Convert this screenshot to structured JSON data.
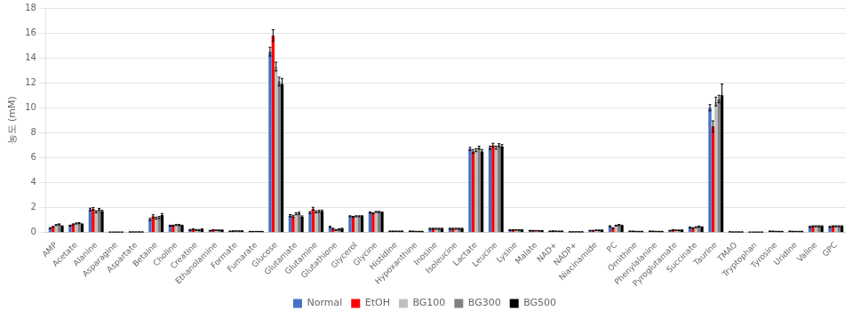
{
  "chart_data": {
    "type": "bar",
    "ylabel": "농도 (mM)",
    "categories": [
      "AMP",
      "Acetate",
      "Alanine",
      "Asparagine",
      "Aspartate",
      "Betaine",
      "Choline",
      "Creatine",
      "Ethanolamine",
      "Formate",
      "Fumarate",
      "Glucose",
      "Glutamate",
      "Glutamine",
      "Glutathione",
      "Glycerol",
      "Glycine",
      "Histidine",
      "Hypoxanthine",
      "Inosine",
      "Isoleucine",
      "Lactate",
      "Leucine",
      "Lysine",
      "Malate",
      "NAD+",
      "NADP+",
      "Niacinamide",
      "PC",
      "Ornithine",
      "Phenylalanine",
      "Pyroglutamate",
      "Succinate",
      "Taurine",
      "TMAO",
      "Tryptophan",
      "Tyrosine",
      "Uridine",
      "Valine",
      "GPC"
    ],
    "series": [
      {
        "name": "Normal",
        "color": "#4472C4",
        "values": [
          0.35,
          0.55,
          1.85,
          0.03,
          0.04,
          1.05,
          0.55,
          0.2,
          0.15,
          0.1,
          0.08,
          14.5,
          1.35,
          1.6,
          0.45,
          1.3,
          1.6,
          0.1,
          0.1,
          0.3,
          0.3,
          6.7,
          6.8,
          0.2,
          0.15,
          0.1,
          0.05,
          0.15,
          0.5,
          0.1,
          0.1,
          0.15,
          0.4,
          10.0,
          0.05,
          0.03,
          0.1,
          0.1,
          0.45,
          0.45
        ],
        "errors": [
          0.04,
          0.04,
          0.1,
          0.005,
          0.005,
          0.08,
          0.04,
          0.04,
          0.02,
          0.01,
          0.01,
          0.35,
          0.08,
          0.08,
          0.04,
          0.04,
          0.04,
          0.015,
          0.015,
          0.04,
          0.04,
          0.12,
          0.12,
          0.02,
          0.02,
          0.015,
          0.008,
          0.02,
          0.04,
          0.015,
          0.015,
          0.02,
          0.04,
          0.25,
          0.008,
          0.008,
          0.015,
          0.015,
          0.04,
          0.04
        ]
      },
      {
        "name": "EtOH",
        "color": "#FF0000",
        "values": [
          0.45,
          0.65,
          1.9,
          0.03,
          0.04,
          1.3,
          0.55,
          0.25,
          0.2,
          0.12,
          0.08,
          15.8,
          1.3,
          1.9,
          0.3,
          1.25,
          1.55,
          0.1,
          0.1,
          0.3,
          0.3,
          6.5,
          7.0,
          0.2,
          0.15,
          0.12,
          0.05,
          0.15,
          0.35,
          0.1,
          0.1,
          0.2,
          0.35,
          8.5,
          0.04,
          0.03,
          0.1,
          0.08,
          0.5,
          0.5
        ],
        "errors": [
          0.04,
          0.04,
          0.1,
          0.005,
          0.005,
          0.12,
          0.04,
          0.04,
          0.02,
          0.01,
          0.01,
          0.45,
          0.08,
          0.12,
          0.04,
          0.04,
          0.04,
          0.015,
          0.015,
          0.04,
          0.04,
          0.15,
          0.15,
          0.02,
          0.02,
          0.015,
          0.008,
          0.02,
          0.04,
          0.015,
          0.015,
          0.03,
          0.04,
          0.45,
          0.008,
          0.008,
          0.015,
          0.015,
          0.04,
          0.04
        ]
      },
      {
        "name": "BG100",
        "color": "#C0C0C0",
        "values": [
          0.6,
          0.72,
          1.65,
          0.03,
          0.04,
          1.15,
          0.6,
          0.2,
          0.18,
          0.12,
          0.08,
          13.3,
          1.5,
          1.65,
          0.2,
          1.3,
          1.65,
          0.1,
          0.08,
          0.3,
          0.3,
          6.6,
          6.8,
          0.2,
          0.14,
          0.1,
          0.05,
          0.18,
          0.55,
          0.08,
          0.08,
          0.18,
          0.42,
          10.5,
          0.04,
          0.03,
          0.08,
          0.08,
          0.5,
          0.5
        ],
        "errors": [
          0.04,
          0.04,
          0.08,
          0.005,
          0.005,
          0.08,
          0.04,
          0.04,
          0.02,
          0.01,
          0.01,
          0.35,
          0.08,
          0.08,
          0.04,
          0.04,
          0.04,
          0.015,
          0.015,
          0.04,
          0.04,
          0.12,
          0.12,
          0.02,
          0.02,
          0.015,
          0.008,
          0.02,
          0.04,
          0.015,
          0.015,
          0.02,
          0.04,
          0.35,
          0.008,
          0.008,
          0.015,
          0.015,
          0.04,
          0.04
        ]
      },
      {
        "name": "BG300",
        "color": "#808080",
        "values": [
          0.65,
          0.75,
          1.85,
          0.03,
          0.04,
          1.2,
          0.6,
          0.2,
          0.18,
          0.12,
          0.08,
          12.1,
          1.55,
          1.7,
          0.25,
          1.3,
          1.65,
          0.1,
          0.08,
          0.3,
          0.3,
          6.8,
          7.0,
          0.2,
          0.14,
          0.1,
          0.05,
          0.18,
          0.6,
          0.08,
          0.08,
          0.18,
          0.48,
          10.7,
          0.04,
          0.03,
          0.08,
          0.08,
          0.5,
          0.5
        ],
        "errors": [
          0.04,
          0.04,
          0.08,
          0.005,
          0.005,
          0.08,
          0.04,
          0.04,
          0.02,
          0.01,
          0.01,
          0.35,
          0.08,
          0.08,
          0.04,
          0.04,
          0.04,
          0.015,
          0.015,
          0.04,
          0.04,
          0.12,
          0.12,
          0.02,
          0.02,
          0.015,
          0.008,
          0.02,
          0.04,
          0.015,
          0.015,
          0.02,
          0.04,
          0.3,
          0.008,
          0.008,
          0.015,
          0.015,
          0.04,
          0.04
        ]
      },
      {
        "name": "BG500",
        "color": "#000000",
        "values": [
          0.5,
          0.65,
          1.7,
          0.03,
          0.04,
          1.4,
          0.55,
          0.25,
          0.18,
          0.12,
          0.08,
          11.9,
          1.25,
          1.7,
          0.3,
          1.3,
          1.6,
          0.1,
          0.08,
          0.3,
          0.3,
          6.5,
          6.9,
          0.2,
          0.14,
          0.1,
          0.05,
          0.18,
          0.55,
          0.08,
          0.08,
          0.18,
          0.42,
          11.0,
          0.04,
          0.03,
          0.08,
          0.08,
          0.5,
          0.5
        ],
        "errors": [
          0.04,
          0.04,
          0.08,
          0.005,
          0.005,
          0.12,
          0.04,
          0.04,
          0.02,
          0.01,
          0.01,
          0.45,
          0.08,
          0.08,
          0.04,
          0.04,
          0.04,
          0.015,
          0.015,
          0.04,
          0.04,
          0.15,
          0.15,
          0.02,
          0.02,
          0.015,
          0.008,
          0.02,
          0.04,
          0.015,
          0.015,
          0.03,
          0.04,
          0.9,
          0.008,
          0.008,
          0.015,
          0.015,
          0.04,
          0.04
        ]
      }
    ],
    "ylim": [
      0,
      18
    ],
    "yticks": [
      0,
      2,
      4,
      6,
      8,
      10,
      12,
      14,
      16,
      18
    ],
    "grid": true,
    "legend": "bottom"
  }
}
